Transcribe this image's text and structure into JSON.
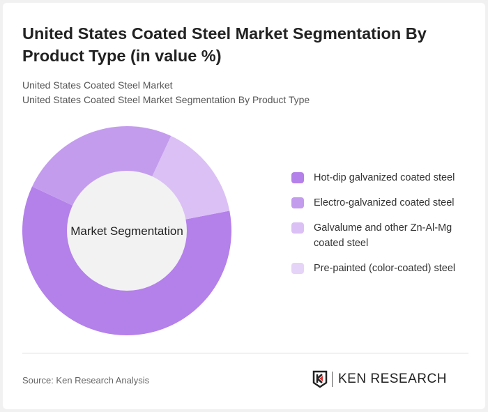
{
  "title": "United States Coated Steel Market Segmentation By Product Type (in value %)",
  "subtitle1": "United States Coated Steel Market",
  "subtitle2": "United States Coated Steel Market Segmentation By Product Type",
  "source": "Source: Ken Research Analysis",
  "logo_text": "KEN RESEARCH",
  "chart_data": {
    "type": "pie",
    "variant": "donut",
    "center_label": "Market Segmentation",
    "unit": "%",
    "legend_position": "right",
    "categories": [
      "Hot-dip galvanized coated steel",
      "Electro-galvanized coated steel",
      "Galvalume and other Zn-Al-Mg coated steel",
      "Pre-painted (color-coated) steel"
    ],
    "values": [
      60,
      25,
      15,
      0
    ],
    "colors": [
      "#b480ea",
      "#c49cee",
      "#dbc0f5",
      "#e6d3f8"
    ]
  }
}
